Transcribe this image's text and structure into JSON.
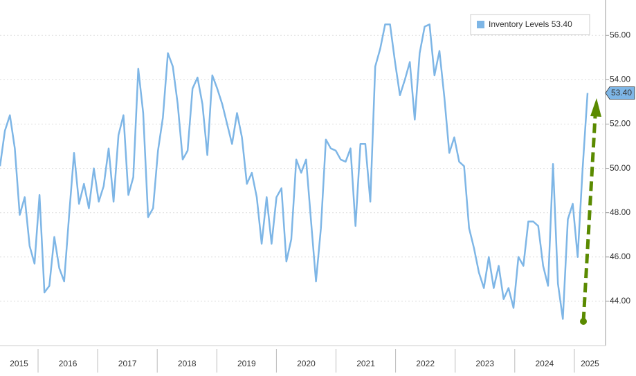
{
  "chart_data": {
    "type": "line",
    "series": [
      {
        "name": "Inventory Levels",
        "color": "#7eb6e6",
        "values": [
          50.1,
          51.7,
          52.4,
          50.9,
          47.9,
          48.7,
          46.5,
          45.7,
          48.8,
          44.4,
          44.7,
          46.9,
          45.5,
          44.9,
          47.9,
          50.7,
          48.4,
          49.3,
          48.2,
          50.0,
          48.5,
          49.2,
          50.9,
          48.5,
          51.5,
          52.4,
          48.8,
          49.6,
          54.5,
          52.5,
          47.8,
          48.2,
          50.8,
          52.3,
          55.2,
          54.6,
          52.9,
          50.4,
          50.8,
          53.6,
          54.1,
          52.9,
          50.6,
          54.2,
          53.6,
          52.9,
          52.0,
          51.1,
          52.5,
          51.4,
          49.3,
          49.8,
          48.7,
          46.6,
          48.7,
          46.6,
          48.7,
          49.1,
          45.8,
          46.8,
          50.4,
          49.8,
          50.4,
          47.6,
          44.9,
          47.3,
          51.3,
          50.9,
          50.8,
          50.4,
          50.3,
          50.9,
          47.4,
          51.1,
          51.1,
          48.5,
          54.6,
          55.4,
          56.5,
          56.5,
          54.8,
          53.3,
          54.0,
          54.8,
          52.2,
          55.2,
          56.4,
          56.5,
          54.2,
          55.3,
          53.2,
          50.7,
          51.4,
          50.3,
          50.1,
          47.3,
          46.4,
          45.3,
          44.6,
          46.0,
          44.6,
          45.6,
          44.1,
          44.6,
          43.7,
          46.0,
          45.6,
          47.6,
          47.6,
          47.4,
          45.6,
          44.7,
          50.2,
          44.8,
          43.2,
          47.7,
          48.4,
          46.0,
          50.0,
          53.4
        ],
        "last_value_label": "53.40"
      }
    ],
    "x_labels": [
      "2015",
      "2016",
      "2017",
      "2018",
      "2019",
      "2020",
      "2021",
      "2022",
      "2023",
      "2024",
      "2025"
    ],
    "ylim": [
      42,
      57.6
    ],
    "yticks": [
      {
        "value": 44,
        "label": "44.00"
      },
      {
        "value": 46,
        "label": "46.00"
      },
      {
        "value": 48,
        "label": "48.00"
      },
      {
        "value": 50,
        "label": "50.00"
      },
      {
        "value": 52,
        "label": "52.00"
      },
      {
        "value": 54,
        "label": "54.00"
      },
      {
        "value": 56,
        "label": "56.00"
      }
    ],
    "grid": true
  }
}
